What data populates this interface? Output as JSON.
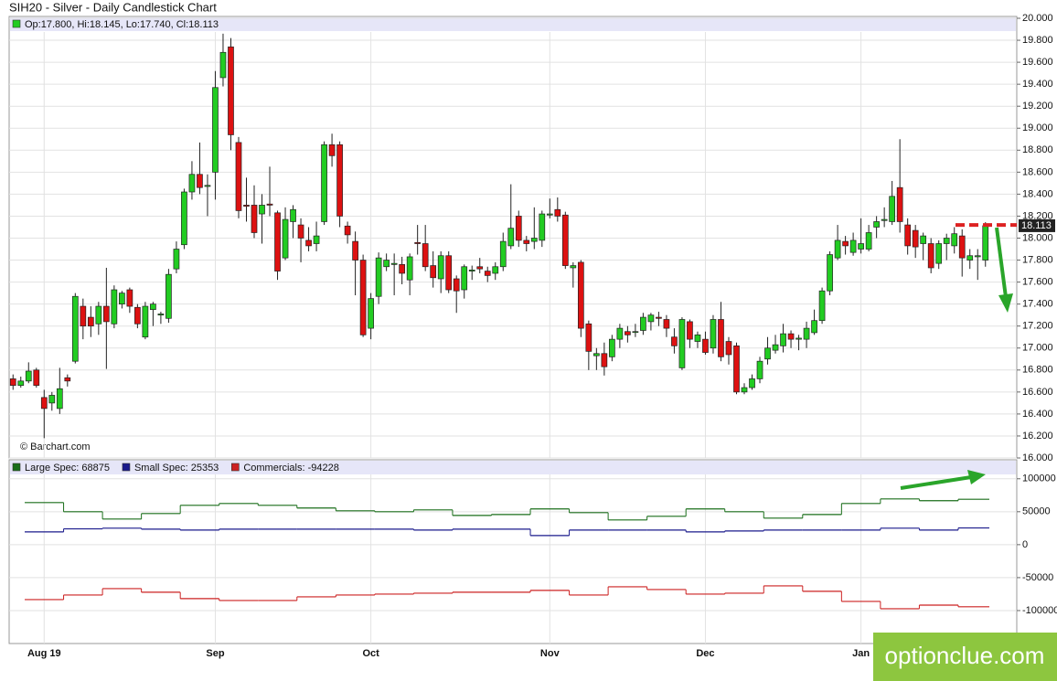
{
  "chart_data": [
    {
      "type": "candlestick",
      "title": "SIH20 - Silver - Daily Candlestick Chart",
      "legend_text": "Op:17.800, Hi:18.145, Lo:17.740, Cl:18.113",
      "source_note": "© Barchart.com",
      "categories": [
        null,
        null,
        null,
        null,
        "Aug 19",
        null,
        null,
        null,
        null,
        null,
        null,
        null,
        null,
        null,
        null,
        null,
        null,
        null,
        null,
        null,
        null,
        null,
        null,
        null,
        null,
        null,
        "Sep",
        null,
        null,
        null,
        null,
        null,
        null,
        null,
        null,
        null,
        null,
        null,
        null,
        null,
        null,
        null,
        null,
        null,
        null,
        null,
        "Oct",
        null,
        null,
        null,
        null,
        null,
        null,
        null,
        null,
        null,
        null,
        null,
        null,
        null,
        null,
        null,
        null,
        null,
        null,
        null,
        null,
        null,
        null,
        "Nov",
        null,
        null,
        null,
        null,
        null,
        null,
        null,
        null,
        null,
        null,
        null,
        null,
        null,
        null,
        null,
        null,
        null,
        null,
        null,
        "Dec",
        null,
        null,
        null,
        null,
        null,
        null,
        null,
        null,
        null,
        null,
        null,
        null,
        null,
        null,
        null,
        null,
        null,
        null,
        null,
        "Jan",
        null,
        null,
        null,
        null,
        null,
        null,
        null,
        null,
        null,
        null,
        null,
        null,
        null,
        null,
        null,
        null
      ],
      "open": [
        16.72,
        16.66,
        16.7,
        16.8,
        16.55,
        16.5,
        16.45,
        16.73,
        16.88,
        17.38,
        17.28,
        17.22,
        17.38,
        17.22,
        17.4,
        17.53,
        17.37,
        17.1,
        17.35,
        17.3,
        17.27,
        17.72,
        17.94,
        18.42,
        18.58,
        18.47,
        18.6,
        19.46,
        19.74,
        18.87,
        18.3,
        18.3,
        18.22,
        18.31,
        18.23,
        17.82,
        18.15,
        18.12,
        17.98,
        17.95,
        18.15,
        18.85,
        18.85,
        18.11,
        17.97,
        17.8,
        17.18,
        17.47,
        17.74,
        17.76,
        17.76,
        17.62,
        17.96,
        17.95,
        17.75,
        17.63,
        17.84,
        17.63,
        17.53,
        17.7,
        17.74,
        17.7,
        17.68,
        17.74,
        17.93,
        18.2,
        17.98,
        17.97,
        17.98,
        18.21,
        18.26,
        18.21,
        17.73,
        17.78,
        17.22,
        16.93,
        16.95,
        16.92,
        17.08,
        17.15,
        17.15,
        17.16,
        17.24,
        17.28,
        17.26,
        17.1,
        16.82,
        17.24,
        17.06,
        17.08,
        17.0,
        17.26,
        17.06,
        17.02,
        16.6,
        16.64,
        16.72,
        16.9,
        16.98,
        17.02,
        17.13,
        17.08,
        17.08,
        17.14,
        17.25,
        17.52,
        17.82,
        17.97,
        17.87,
        17.9,
        17.9,
        18.1,
        18.16,
        18.15,
        18.46,
        18.12,
        18.07,
        17.95,
        17.95,
        17.77,
        17.95,
        17.93,
        18.02,
        17.8,
        17.83,
        17.8
      ],
      "high": [
        16.76,
        16.74,
        16.87,
        16.82,
        16.62,
        16.6,
        16.82,
        16.76,
        17.5,
        17.45,
        17.38,
        17.42,
        17.73,
        17.57,
        17.52,
        17.55,
        17.4,
        17.42,
        17.42,
        17.33,
        17.72,
        17.97,
        18.45,
        18.7,
        18.87,
        18.58,
        19.52,
        19.86,
        19.82,
        18.92,
        18.55,
        18.48,
        18.4,
        18.65,
        18.25,
        18.28,
        18.3,
        18.18,
        18.1,
        18.15,
        18.88,
        18.95,
        18.88,
        18.15,
        18.06,
        17.85,
        17.5,
        17.87,
        17.86,
        17.86,
        17.83,
        17.86,
        18.12,
        18.12,
        17.88,
        17.88,
        17.88,
        17.66,
        17.76,
        17.75,
        17.82,
        17.74,
        17.78,
        18.05,
        18.49,
        18.25,
        18.02,
        18.28,
        18.25,
        18.36,
        18.37,
        18.24,
        17.78,
        17.8,
        17.25,
        17.0,
        17.05,
        17.12,
        17.22,
        17.2,
        17.22,
        17.32,
        17.32,
        17.33,
        17.3,
        17.18,
        17.28,
        17.26,
        17.15,
        17.15,
        17.3,
        17.42,
        17.1,
        17.05,
        16.68,
        16.76,
        16.92,
        17.1,
        17.12,
        17.22,
        17.16,
        17.12,
        17.24,
        17.35,
        17.55,
        17.88,
        18.12,
        18.02,
        18.05,
        18.18,
        18.12,
        18.2,
        18.28,
        18.52,
        18.9,
        18.18,
        18.12,
        18.05,
        18.0,
        17.98,
        18.04,
        18.1,
        18.08,
        17.9,
        17.9,
        18.145
      ],
      "low": [
        16.62,
        16.64,
        16.68,
        16.64,
        16.18,
        16.43,
        16.4,
        16.65,
        16.86,
        17.08,
        17.1,
        17.12,
        16.81,
        17.18,
        17.36,
        17.32,
        17.18,
        17.08,
        17.2,
        17.22,
        17.23,
        17.68,
        17.9,
        18.35,
        18.4,
        18.2,
        18.35,
        19.38,
        18.8,
        18.18,
        18.15,
        18.0,
        17.95,
        18.2,
        17.62,
        17.8,
        18.0,
        17.78,
        17.88,
        17.88,
        18.12,
        18.65,
        18.1,
        17.95,
        17.48,
        17.1,
        17.08,
        17.4,
        17.7,
        17.48,
        17.58,
        17.48,
        17.85,
        17.7,
        17.55,
        17.5,
        17.5,
        17.32,
        17.45,
        17.62,
        17.68,
        17.6,
        17.62,
        17.7,
        17.9,
        17.92,
        17.88,
        17.9,
        17.92,
        18.18,
        18.15,
        17.72,
        17.55,
        17.1,
        16.8,
        16.8,
        16.75,
        16.88,
        17.0,
        17.05,
        17.1,
        17.12,
        17.16,
        17.2,
        17.1,
        16.95,
        16.8,
        17.0,
        17.0,
        16.94,
        16.95,
        16.88,
        16.85,
        16.58,
        16.58,
        16.62,
        16.68,
        16.85,
        16.95,
        16.96,
        17.0,
        16.98,
        17.0,
        17.12,
        17.22,
        17.48,
        17.8,
        17.85,
        17.84,
        17.86,
        17.88,
        18.0,
        18.1,
        18.12,
        18.05,
        17.85,
        17.82,
        17.8,
        17.68,
        17.72,
        17.8,
        17.86,
        17.65,
        17.72,
        17.62,
        17.74
      ],
      "close": [
        16.66,
        16.7,
        16.79,
        16.66,
        16.45,
        16.57,
        16.63,
        16.7,
        17.47,
        17.2,
        17.2,
        17.38,
        17.24,
        17.53,
        17.5,
        17.38,
        17.22,
        17.38,
        17.4,
        17.31,
        17.67,
        17.9,
        18.42,
        18.58,
        18.46,
        18.48,
        19.37,
        19.69,
        18.94,
        18.25,
        18.29,
        18.05,
        18.3,
        18.3,
        17.7,
        18.17,
        18.26,
        18.0,
        17.93,
        18.02,
        18.85,
        18.75,
        18.2,
        18.03,
        17.8,
        17.12,
        17.45,
        17.82,
        17.8,
        17.77,
        17.68,
        17.83,
        17.95,
        17.74,
        17.64,
        17.84,
        17.53,
        17.52,
        17.74,
        17.71,
        17.72,
        17.66,
        17.74,
        17.97,
        18.09,
        17.98,
        17.95,
        18.0,
        18.22,
        18.22,
        18.2,
        17.75,
        17.75,
        17.18,
        16.97,
        16.95,
        16.83,
        17.08,
        17.18,
        17.12,
        17.15,
        17.28,
        17.3,
        17.27,
        17.18,
        17.02,
        17.26,
        17.08,
        17.12,
        16.96,
        17.26,
        16.92,
        16.94,
        16.6,
        16.64,
        16.72,
        16.88,
        17.0,
        17.03,
        17.13,
        17.08,
        17.09,
        17.18,
        17.25,
        17.52,
        17.85,
        17.98,
        17.93,
        17.98,
        17.95,
        18.05,
        18.15,
        18.17,
        18.38,
        18.15,
        17.93,
        17.92,
        18.02,
        17.73,
        17.95,
        18.0,
        18.04,
        17.82,
        17.84,
        17.84,
        18.113
      ],
      "up_color": "#22cc22",
      "down_color": "#dd1111",
      "ylim": [
        16,
        20
      ],
      "yticks": [
        {
          "value": 16,
          "label": "16.000"
        },
        {
          "value": 16.2,
          "label": "16.200"
        },
        {
          "value": 16.4,
          "label": "16.400"
        },
        {
          "value": 16.6,
          "label": "16.600"
        },
        {
          "value": 16.8,
          "label": "16.800"
        },
        {
          "value": 17,
          "label": "17.000"
        },
        {
          "value": 17.2,
          "label": "17.200"
        },
        {
          "value": 17.4,
          "label": "17.400"
        },
        {
          "value": 17.6,
          "label": "17.600"
        },
        {
          "value": 17.8,
          "label": "17.800"
        },
        {
          "value": 18,
          "label": "18.000"
        },
        {
          "value": 18.2,
          "label": "18.200"
        },
        {
          "value": 18.4,
          "label": "18.400"
        },
        {
          "value": 18.6,
          "label": "18.600"
        },
        {
          "value": 18.8,
          "label": "18.800"
        },
        {
          "value": 19,
          "label": "19.000"
        },
        {
          "value": 19.2,
          "label": "19.200"
        },
        {
          "value": 19.4,
          "label": "19.400"
        },
        {
          "value": 19.6,
          "label": "19.600"
        },
        {
          "value": 19.8,
          "label": "19.800"
        },
        {
          "value": 20,
          "label": "20.000"
        }
      ],
      "grid": true,
      "last_price": {
        "value": 18.113,
        "label": "18.113"
      },
      "resistance_line": {
        "value": 18.12,
        "color": "#dd2222"
      }
    },
    {
      "type": "step",
      "categories": [
        null,
        null,
        null,
        null,
        null,
        null,
        null,
        null,
        null,
        null,
        null,
        null,
        null,
        null,
        null,
        null,
        null,
        null,
        null,
        null,
        null,
        null,
        null,
        null,
        null
      ],
      "series": [
        {
          "name": "Large Spec: 68875",
          "color": "#1a6e1a",
          "values": [
            63900,
            50000,
            38900,
            47200,
            59700,
            62500,
            59700,
            55600,
            51400,
            50000,
            52800,
            44400,
            45800,
            54200,
            48600,
            37500,
            43100,
            54200,
            50000,
            40300,
            45800,
            62500,
            69400,
            66700,
            68875
          ]
        },
        {
          "name": "Small Spec: 25353",
          "color": "#1a1a8c",
          "values": [
            19400,
            24000,
            25000,
            23600,
            22200,
            23600,
            23600,
            23600,
            23600,
            23600,
            22200,
            23600,
            23600,
            13900,
            22200,
            22200,
            22200,
            19400,
            20800,
            22200,
            22200,
            22200,
            25000,
            22200,
            25353
          ]
        },
        {
          "name": "Commercials: -94228",
          "color": "#cc2222",
          "values": [
            -83300,
            -76400,
            -66700,
            -72200,
            -81900,
            -84700,
            -84700,
            -79200,
            -76400,
            -75000,
            -73600,
            -72200,
            -72200,
            -69400,
            -76400,
            -63900,
            -68100,
            -75000,
            -73600,
            -62500,
            -70800,
            -86100,
            -97200,
            -91700,
            -94228
          ]
        }
      ],
      "ylim": [
        -150000,
        108000
      ],
      "yticks": [
        -100000,
        -50000,
        0,
        50000,
        100000
      ],
      "grid": true
    }
  ],
  "watermark": "optionclue.com"
}
